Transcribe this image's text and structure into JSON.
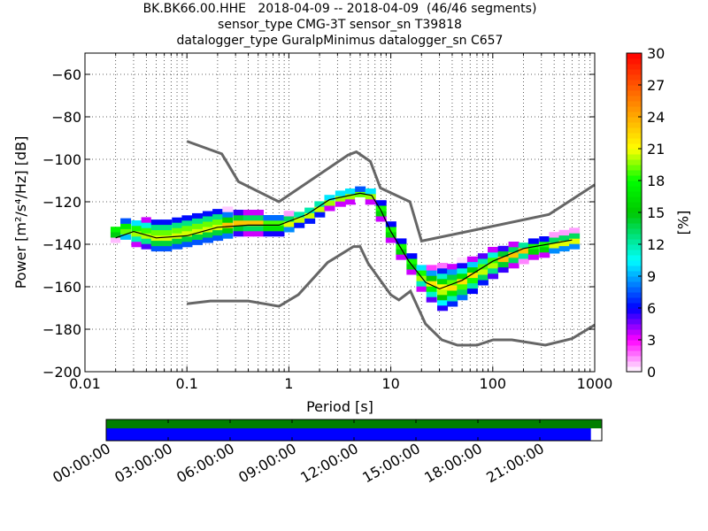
{
  "title_lines": [
    "BK.BK66.00.HHE   2018-04-09 -- 2018-04-09  (46/46 segments)",
    "sensor_type CMG-3T sensor_sn T39818",
    "datalogger_type GuralpMinimus datalogger_sn C657"
  ],
  "colorbar": {
    "label": "[%]",
    "ticks": [
      "0",
      "3",
      "6",
      "9",
      "12",
      "15",
      "18",
      "21",
      "24",
      "27",
      "30"
    ],
    "range": [
      0,
      30
    ],
    "colormap": "pqlx"
  },
  "chart_data": {
    "type": "heatmap",
    "xlabel": "Period [s]",
    "ylabel": "Power [m²/s⁴/Hz] [dB]",
    "x_scale": "log",
    "xlim": [
      0.01,
      1000
    ],
    "ylim": [
      -200,
      -50
    ],
    "xticks": [
      "0.01",
      "0.1",
      "1",
      "10",
      "100",
      "1000"
    ],
    "yticks": [
      "−60",
      "−80",
      "−100",
      "−120",
      "−140",
      "−160",
      "−180",
      "−200"
    ],
    "grid": true,
    "noise_models": {
      "high": {
        "color": "#666666",
        "points": [
          [
            0.1,
            -91.5
          ],
          [
            0.22,
            -97.4
          ],
          [
            0.32,
            -110.5
          ],
          [
            0.8,
            -120
          ],
          [
            3.8,
            -98
          ],
          [
            4.6,
            -96.5
          ],
          [
            6.3,
            -101
          ],
          [
            7.9,
            -113.5
          ],
          [
            15.4,
            -120
          ],
          [
            20,
            -138.5
          ],
          [
            354.8,
            -126
          ],
          [
            1000,
            -112
          ]
        ]
      },
      "low": {
        "color": "#666666",
        "points": [
          [
            0.1,
            -168
          ],
          [
            0.17,
            -166.7
          ],
          [
            0.4,
            -166.7
          ],
          [
            0.8,
            -169.2
          ],
          [
            1.24,
            -163.7
          ],
          [
            2.4,
            -148.6
          ],
          [
            4.3,
            -141.1
          ],
          [
            5,
            -141.1
          ],
          [
            6,
            -149
          ],
          [
            10,
            -163.8
          ],
          [
            12,
            -166.2
          ],
          [
            15.6,
            -162.1
          ],
          [
            21.9,
            -177.5
          ],
          [
            31.6,
            -185
          ],
          [
            45,
            -187.5
          ],
          [
            70,
            -187.5
          ],
          [
            101,
            -185
          ],
          [
            154,
            -185
          ],
          [
            328,
            -187.5
          ],
          [
            600,
            -184.4
          ],
          [
            1000,
            -178
          ]
        ]
      }
    },
    "median": {
      "color": "#000000",
      "points": [
        [
          0.02,
          -137
        ],
        [
          0.03,
          -134
        ],
        [
          0.05,
          -137
        ],
        [
          0.1,
          -136
        ],
        [
          0.2,
          -132
        ],
        [
          0.4,
          -131
        ],
        [
          0.8,
          -131
        ],
        [
          1.5,
          -126
        ],
        [
          2.5,
          -119
        ],
        [
          5,
          -116
        ],
        [
          6.5,
          -117
        ],
        [
          8,
          -124
        ],
        [
          10,
          -134
        ],
        [
          15,
          -148
        ],
        [
          22,
          -158
        ],
        [
          30,
          -161
        ],
        [
          50,
          -157
        ],
        [
          100,
          -148
        ],
        [
          200,
          -142
        ],
        [
          600,
          -138
        ]
      ]
    },
    "ppsd_columns": [
      {
        "period": 0.02,
        "mode": -134,
        "min": -138,
        "max": -131
      },
      {
        "period": 0.025,
        "mode": -133,
        "min": -139,
        "max": -129
      },
      {
        "period": 0.032,
        "mode": -134,
        "min": -140,
        "max": -128
      },
      {
        "period": 0.04,
        "mode": -135,
        "min": -141,
        "max": -128
      },
      {
        "period": 0.05,
        "mode": -136,
        "min": -142,
        "max": -127
      },
      {
        "period": 0.063,
        "mode": -136,
        "min": -142,
        "max": -127
      },
      {
        "period": 0.08,
        "mode": -135,
        "min": -141,
        "max": -126
      },
      {
        "period": 0.1,
        "mode": -134,
        "min": -140,
        "max": -125
      },
      {
        "period": 0.126,
        "mode": -133,
        "min": -139,
        "max": -124
      },
      {
        "period": 0.16,
        "mode": -132,
        "min": -138,
        "max": -123
      },
      {
        "period": 0.2,
        "mode": -131,
        "min": -137,
        "max": -122
      },
      {
        "period": 0.25,
        "mode": -131,
        "min": -136,
        "max": -123
      },
      {
        "period": 0.32,
        "mode": -130,
        "min": -135,
        "max": -124
      },
      {
        "period": 0.4,
        "mode": -130,
        "min": -135,
        "max": -125
      },
      {
        "period": 0.5,
        "mode": -130,
        "min": -135,
        "max": -125
      },
      {
        "period": 0.63,
        "mode": -131,
        "min": -135,
        "max": -126
      },
      {
        "period": 0.8,
        "mode": -131,
        "min": -135,
        "max": -126
      },
      {
        "period": 1.0,
        "mode": -130,
        "min": -133,
        "max": -125
      },
      {
        "period": 1.26,
        "mode": -128,
        "min": -131,
        "max": -124
      },
      {
        "period": 1.6,
        "mode": -126,
        "min": -129,
        "max": -122
      },
      {
        "period": 2.0,
        "mode": -123,
        "min": -126,
        "max": -119
      },
      {
        "period": 2.5,
        "mode": -120,
        "min": -123,
        "max": -117
      },
      {
        "period": 3.2,
        "mode": -118,
        "min": -121,
        "max": -115
      },
      {
        "period": 4.0,
        "mode": -117,
        "min": -120,
        "max": -114
      },
      {
        "period": 5.0,
        "mode": -116,
        "min": -119,
        "max": -114
      },
      {
        "period": 6.3,
        "mode": -117,
        "min": -120,
        "max": -114
      },
      {
        "period": 8.0,
        "mode": -124,
        "min": -128,
        "max": -120
      },
      {
        "period": 10,
        "mode": -134,
        "min": -138,
        "max": -130
      },
      {
        "period": 12.6,
        "mode": -142,
        "min": -146,
        "max": -138
      },
      {
        "period": 16,
        "mode": -149,
        "min": -153,
        "max": -145
      },
      {
        "period": 20,
        "mode": -155,
        "min": -161,
        "max": -149
      },
      {
        "period": 25,
        "mode": -159,
        "min": -166,
        "max": -151
      },
      {
        "period": 32,
        "mode": -161,
        "min": -170,
        "max": -150
      },
      {
        "period": 40,
        "mode": -160,
        "min": -168,
        "max": -149
      },
      {
        "period": 50,
        "mode": -158,
        "min": -165,
        "max": -147
      },
      {
        "period": 63,
        "mode": -155,
        "min": -162,
        "max": -146
      },
      {
        "period": 80,
        "mode": -152,
        "min": -158,
        "max": -144
      },
      {
        "period": 100,
        "mode": -149,
        "min": -155,
        "max": -142
      },
      {
        "period": 126,
        "mode": -147,
        "min": -152,
        "max": -141
      },
      {
        "period": 160,
        "mode": -145,
        "min": -150,
        "max": -140
      },
      {
        "period": 200,
        "mode": -143,
        "min": -148,
        "max": -139
      },
      {
        "period": 250,
        "mode": -142,
        "min": -146,
        "max": -138
      },
      {
        "period": 320,
        "mode": -141,
        "min": -145,
        "max": -137
      },
      {
        "period": 400,
        "mode": -140,
        "min": -143,
        "max": -135
      },
      {
        "period": 500,
        "mode": -139,
        "min": -142,
        "max": -134
      },
      {
        "period": 630,
        "mode": -138,
        "min": -141,
        "max": -133
      }
    ]
  },
  "timeline": {
    "labels": [
      "00:00:00",
      "03:00:00",
      "06:00:00",
      "09:00:00",
      "12:00:00",
      "15:00:00",
      "18:00:00",
      "21:00:00"
    ],
    "top_bar_color": "#007f00",
    "bottom_bar_color": "#0000ff",
    "bottom_bar_coverage": 0.978
  }
}
